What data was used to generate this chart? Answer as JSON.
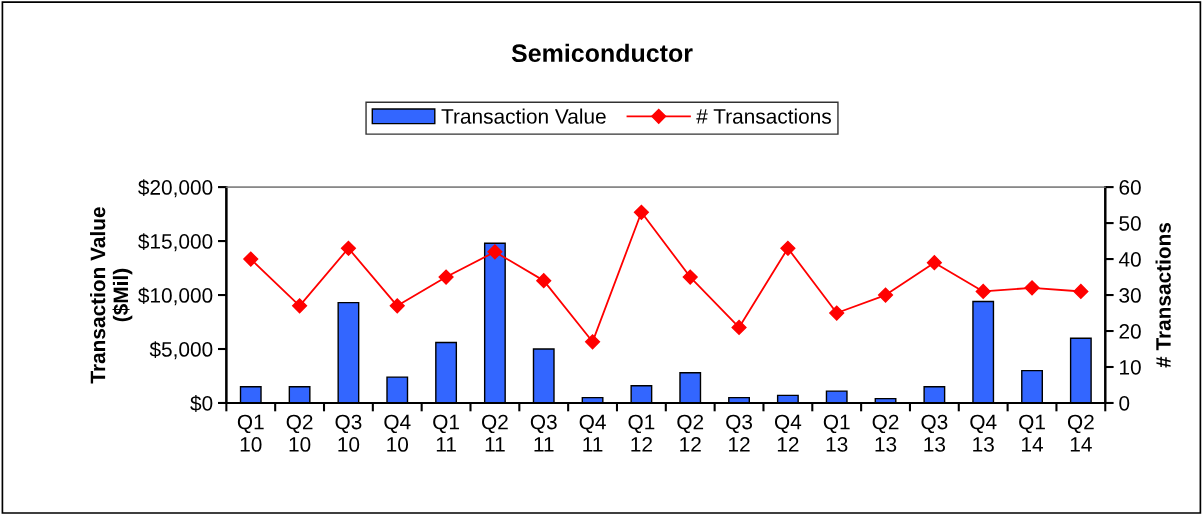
{
  "chart_data": {
    "type": "bar",
    "title": "Semiconductor",
    "ylabel": "Transaction Value\n($Mil)",
    "y2label": "# Transactions",
    "categories": [
      "Q1\n10",
      "Q2\n10",
      "Q3\n10",
      "Q4\n10",
      "Q1\n11",
      "Q2\n11",
      "Q3\n11",
      "Q4\n11",
      "Q1\n12",
      "Q2\n12",
      "Q3\n12",
      "Q4\n12",
      "Q1\n13",
      "Q2\n13",
      "Q3\n13",
      "Q4\n13",
      "Q1\n14",
      "Q2\n14"
    ],
    "series": [
      {
        "name": "Transaction Value",
        "color": "#3366ff",
        "values": [
          1500,
          1500,
          9300,
          2400,
          5600,
          14800,
          5000,
          500,
          1600,
          2800,
          500,
          700,
          1100,
          400,
          1500,
          9400,
          3000,
          6000
        ]
      },
      {
        "name": "# Transactions",
        "type": "line",
        "axis": "y2",
        "color": "#ff0000",
        "marker": "diamond",
        "values": [
          40,
          27,
          43,
          27,
          35,
          42,
          34,
          17,
          53,
          35,
          21,
          43,
          25,
          30,
          39,
          31,
          32,
          31
        ]
      }
    ],
    "ylim": [
      0,
      20000
    ],
    "yticks": [
      {
        "value": 0,
        "label": "$0"
      },
      {
        "value": 5000,
        "label": "$5,000"
      },
      {
        "value": 10000,
        "label": "$10,000"
      },
      {
        "value": 15000,
        "label": "$15,000"
      },
      {
        "value": 20000,
        "label": "$20,000"
      }
    ],
    "y2lim": [
      0,
      60
    ],
    "y2ticks": [
      0,
      10,
      20,
      30,
      40,
      50,
      60
    ],
    "legend": "top",
    "grid": false
  }
}
